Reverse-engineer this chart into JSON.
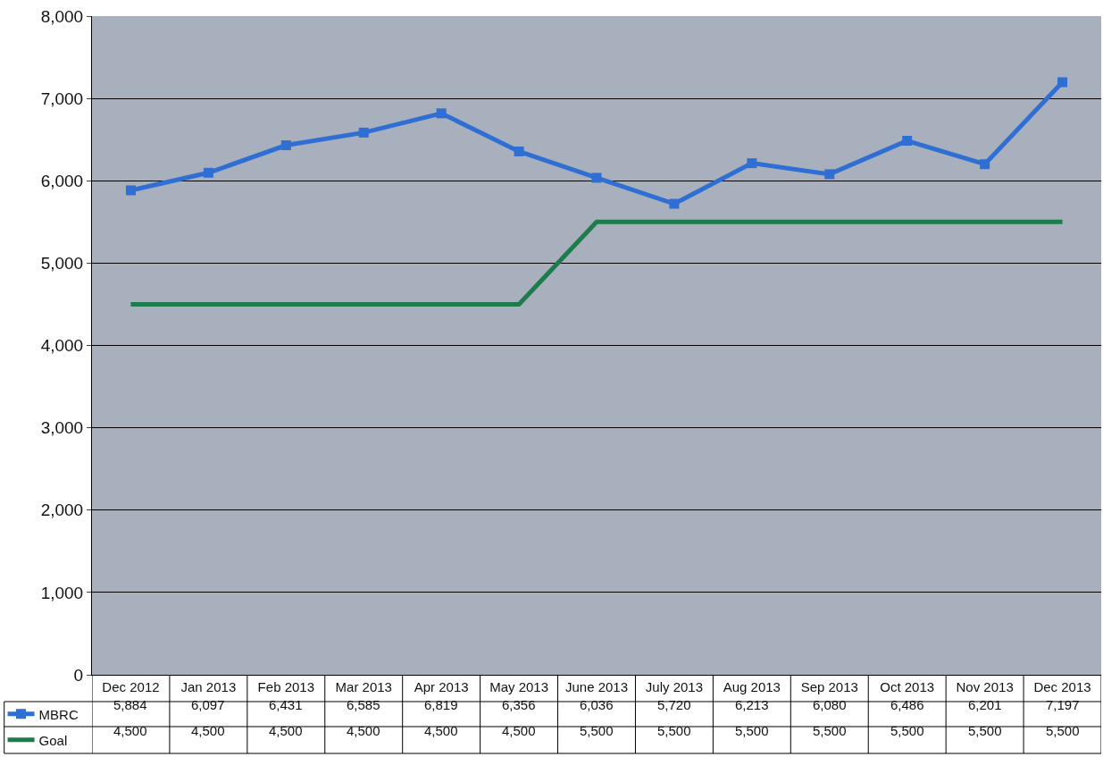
{
  "chart_data": {
    "type": "line",
    "categories": [
      "Dec 2012",
      "Jan 2013",
      "Feb 2013",
      "Mar 2013",
      "Apr 2013",
      "May 2013",
      "June 2013",
      "July 2013",
      "Aug 2013",
      "Sep 2013",
      "Oct 2013",
      "Nov 2013",
      "Dec 2013"
    ],
    "series": [
      {
        "name": "MBRC",
        "color": "#2f6fd3",
        "marker": "square",
        "values": [
          5884,
          6097,
          6431,
          6585,
          6819,
          6356,
          6036,
          5720,
          6213,
          6080,
          6486,
          6201,
          7197
        ],
        "value_labels": [
          "5,884",
          "6,097",
          "6,431",
          "6,585",
          "6,819",
          "6,356",
          "6,036",
          "5,720",
          "6,213",
          "6,080",
          "6,486",
          "6,201",
          "7,197"
        ]
      },
      {
        "name": "Goal",
        "color": "#1e7b4c",
        "marker": "none",
        "values": [
          4500,
          4500,
          4500,
          4500,
          4500,
          4500,
          5500,
          5500,
          5500,
          5500,
          5500,
          5500,
          5500
        ],
        "value_labels": [
          "4,500",
          "4,500",
          "4,500",
          "4,500",
          "4,500",
          "4,500",
          "5,500",
          "5,500",
          "5,500",
          "5,500",
          "5,500",
          "5,500",
          "5,500"
        ]
      }
    ],
    "ylim": [
      0,
      8000
    ],
    "yticks": [
      0,
      {
        "value": 1000,
        "label": "1,000"
      },
      {
        "value": 2000,
        "label": "2,000"
      },
      {
        "value": 3000,
        "label": "3,000"
      },
      {
        "value": 4000,
        "label": "4,000"
      },
      {
        "value": 5000,
        "label": "5,000"
      },
      {
        "value": 6000,
        "label": "6,000"
      },
      {
        "value": 7000,
        "label": "7,000"
      },
      {
        "value": 8000,
        "label": "8,000"
      }
    ],
    "grid": "y",
    "legend": "bottom left",
    "line_style": "solid"
  }
}
